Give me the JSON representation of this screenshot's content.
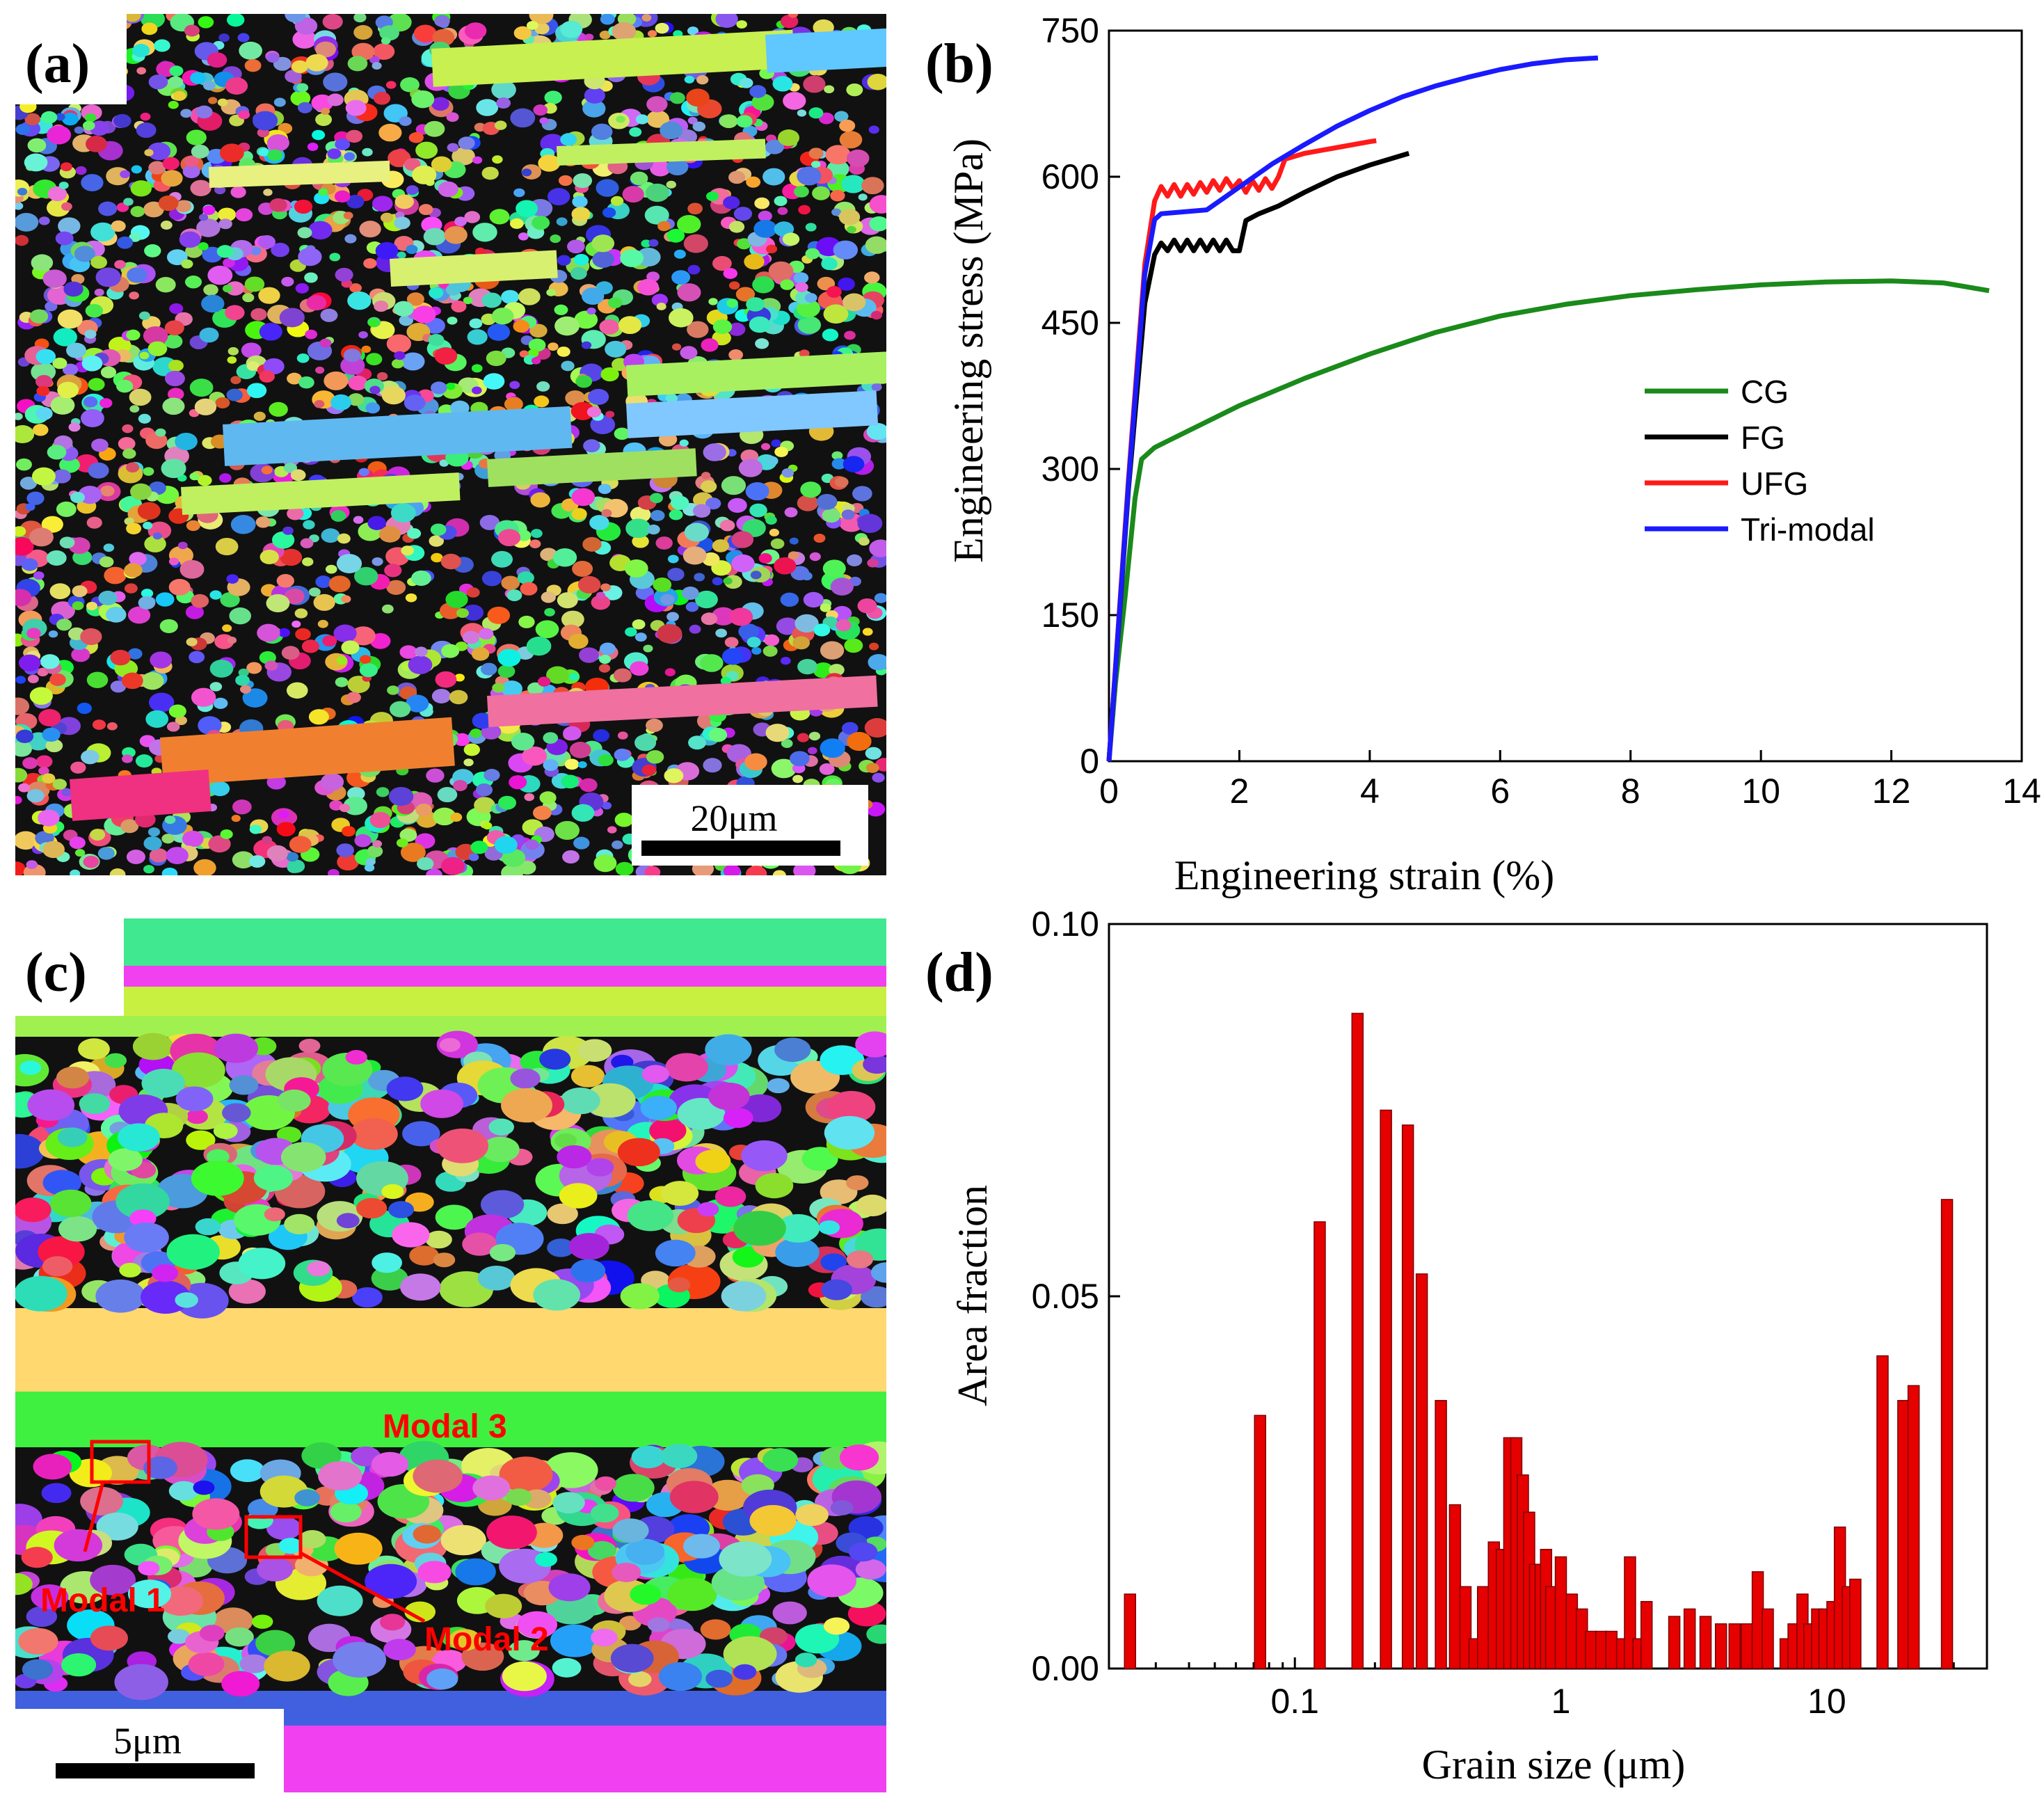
{
  "panels": {
    "a": {
      "label": "(a)",
      "scale_bar": "20μm"
    },
    "b": {
      "label": "(b)"
    },
    "c": {
      "label": "(c)",
      "scale_bar": "5μm",
      "annotations": [
        "Modal 1",
        "Modal 2",
        "Modal 3"
      ],
      "annotation_color": "#ff0000"
    },
    "d": {
      "label": "(d)"
    }
  },
  "colors": {
    "CG": "#1a8a1a",
    "FG": "#000000",
    "UFG": "#ff1a1a",
    "Tri-modal": "#1a1aff",
    "bar_fill": "#e60000",
    "bar_stroke": "#7a0000"
  },
  "chart_data": [
    {
      "type": "line",
      "panel": "b",
      "xlabel": "Engineering strain (%)",
      "ylabel": "Engineering stress (MPa)",
      "xlim": [
        0,
        14
      ],
      "ylim": [
        0,
        750
      ],
      "xticks": [
        0,
        2,
        4,
        6,
        8,
        10,
        12,
        14
      ],
      "yticks": [
        0,
        150,
        300,
        450,
        600,
        750
      ],
      "legend_position": "right-middle",
      "series": [
        {
          "name": "CG",
          "points": [
            [
              0,
              0
            ],
            [
              0.1,
              80
            ],
            [
              0.25,
              170
            ],
            [
              0.4,
              270
            ],
            [
              0.5,
              310
            ],
            [
              0.7,
              322
            ],
            [
              1,
              332
            ],
            [
              2,
              365
            ],
            [
              3,
              393
            ],
            [
              4,
              418
            ],
            [
              5,
              440
            ],
            [
              6,
              457
            ],
            [
              7,
              469
            ],
            [
              8,
              478
            ],
            [
              9,
              484
            ],
            [
              10,
              489
            ],
            [
              11,
              492
            ],
            [
              12,
              493
            ],
            [
              12.8,
              491
            ],
            [
              13.5,
              483
            ]
          ]
        },
        {
          "name": "FG",
          "points": [
            [
              0,
              0
            ],
            [
              0.3,
              280
            ],
            [
              0.55,
              470
            ],
            [
              0.7,
              520
            ],
            [
              0.8,
              532
            ],
            [
              0.9,
              524
            ],
            [
              1.0,
              535
            ],
            [
              1.1,
              524
            ],
            [
              1.2,
              535
            ],
            [
              1.3,
              524
            ],
            [
              1.4,
              535
            ],
            [
              1.5,
              524
            ],
            [
              1.6,
              535
            ],
            [
              1.7,
              524
            ],
            [
              1.8,
              535
            ],
            [
              1.9,
              524
            ],
            [
              2.0,
              524
            ],
            [
              2.1,
              555
            ],
            [
              2.3,
              562
            ],
            [
              2.6,
              570
            ],
            [
              3.0,
              584
            ],
            [
              3.5,
              600
            ],
            [
              4.0,
              612
            ],
            [
              4.6,
              624
            ]
          ]
        },
        {
          "name": "UFG",
          "points": [
            [
              0,
              0
            ],
            [
              0.3,
              290
            ],
            [
              0.55,
              510
            ],
            [
              0.7,
              575
            ],
            [
              0.8,
              590
            ],
            [
              0.9,
              580
            ],
            [
              1.0,
              592
            ],
            [
              1.1,
              580
            ],
            [
              1.2,
              592
            ],
            [
              1.3,
              582
            ],
            [
              1.4,
              594
            ],
            [
              1.5,
              584
            ],
            [
              1.6,
              596
            ],
            [
              1.7,
              586
            ],
            [
              1.8,
              598
            ],
            [
              1.9,
              588
            ],
            [
              2.0,
              596
            ],
            [
              2.1,
              584
            ],
            [
              2.2,
              596
            ],
            [
              2.3,
              586
            ],
            [
              2.4,
              598
            ],
            [
              2.5,
              588
            ],
            [
              2.6,
              600
            ],
            [
              2.7,
              618
            ],
            [
              3.0,
              624
            ],
            [
              3.5,
              630
            ],
            [
              4.0,
              636
            ],
            [
              4.1,
              637
            ]
          ]
        },
        {
          "name": "Tri-modal",
          "points": [
            [
              0,
              0
            ],
            [
              0.3,
              285
            ],
            [
              0.55,
              500
            ],
            [
              0.7,
              556
            ],
            [
              0.8,
              562
            ],
            [
              1.5,
              566
            ],
            [
              1.8,
              580
            ],
            [
              2.5,
              613
            ],
            [
              3.0,
              633
            ],
            [
              3.5,
              652
            ],
            [
              4.0,
              668
            ],
            [
              4.5,
              682
            ],
            [
              5.0,
              693
            ],
            [
              5.5,
              702
            ],
            [
              6.0,
              710
            ],
            [
              6.5,
              716
            ],
            [
              7.0,
              720
            ],
            [
              7.5,
              722
            ]
          ]
        }
      ]
    },
    {
      "type": "bar",
      "panel": "d",
      "xlabel": "Grain size (μm)",
      "ylabel": "Area fraction",
      "xscale": "log",
      "xlim": [
        0.02,
        40
      ],
      "ylim": [
        0,
        0.1
      ],
      "xticks": [
        0.1,
        1,
        10
      ],
      "xtick_labels": [
        "0.1",
        "1",
        "10"
      ],
      "yticks": [
        0,
        0.05,
        0.1
      ],
      "ytick_labels": [
        "0.00",
        "0.05",
        "0.10"
      ],
      "x": [
        0.024,
        0.074,
        0.124,
        0.172,
        0.22,
        0.266,
        0.3,
        0.354,
        0.4,
        0.438,
        0.474,
        0.51,
        0.56,
        0.6,
        0.64,
        0.68,
        0.72,
        0.76,
        0.8,
        0.84,
        0.88,
        0.92,
        1.0,
        1.1,
        1.2,
        1.3,
        1.42,
        1.55,
        1.7,
        1.82,
        1.96,
        2.1,
        2.67,
        3.05,
        3.5,
        4.0,
        4.5,
        5.0,
        5.5,
        6.0,
        7.0,
        7.5,
        8.1,
        8.6,
        9.2,
        9.8,
        10.5,
        11.2,
        12.0,
        12.8,
        16.2,
        19.4,
        21.2,
        28.3
      ],
      "values": [
        0.01,
        0.034,
        0.06,
        0.088,
        0.075,
        0.073,
        0.053,
        0.036,
        0.022,
        0.011,
        0.004,
        0.011,
        0.017,
        0.016,
        0.031,
        0.031,
        0.026,
        0.021,
        0.014,
        0.014,
        0.016,
        0.011,
        0.015,
        0.01,
        0.008,
        0.005,
        0.005,
        0.005,
        0.004,
        0.015,
        0.004,
        0.009,
        0.007,
        0.008,
        0.007,
        0.006,
        0.006,
        0.006,
        0.013,
        0.008,
        0.004,
        0.006,
        0.01,
        0.006,
        0.008,
        0.008,
        0.009,
        0.019,
        0.011,
        0.012,
        0.042,
        0.036,
        0.038,
        0.063
      ]
    }
  ]
}
